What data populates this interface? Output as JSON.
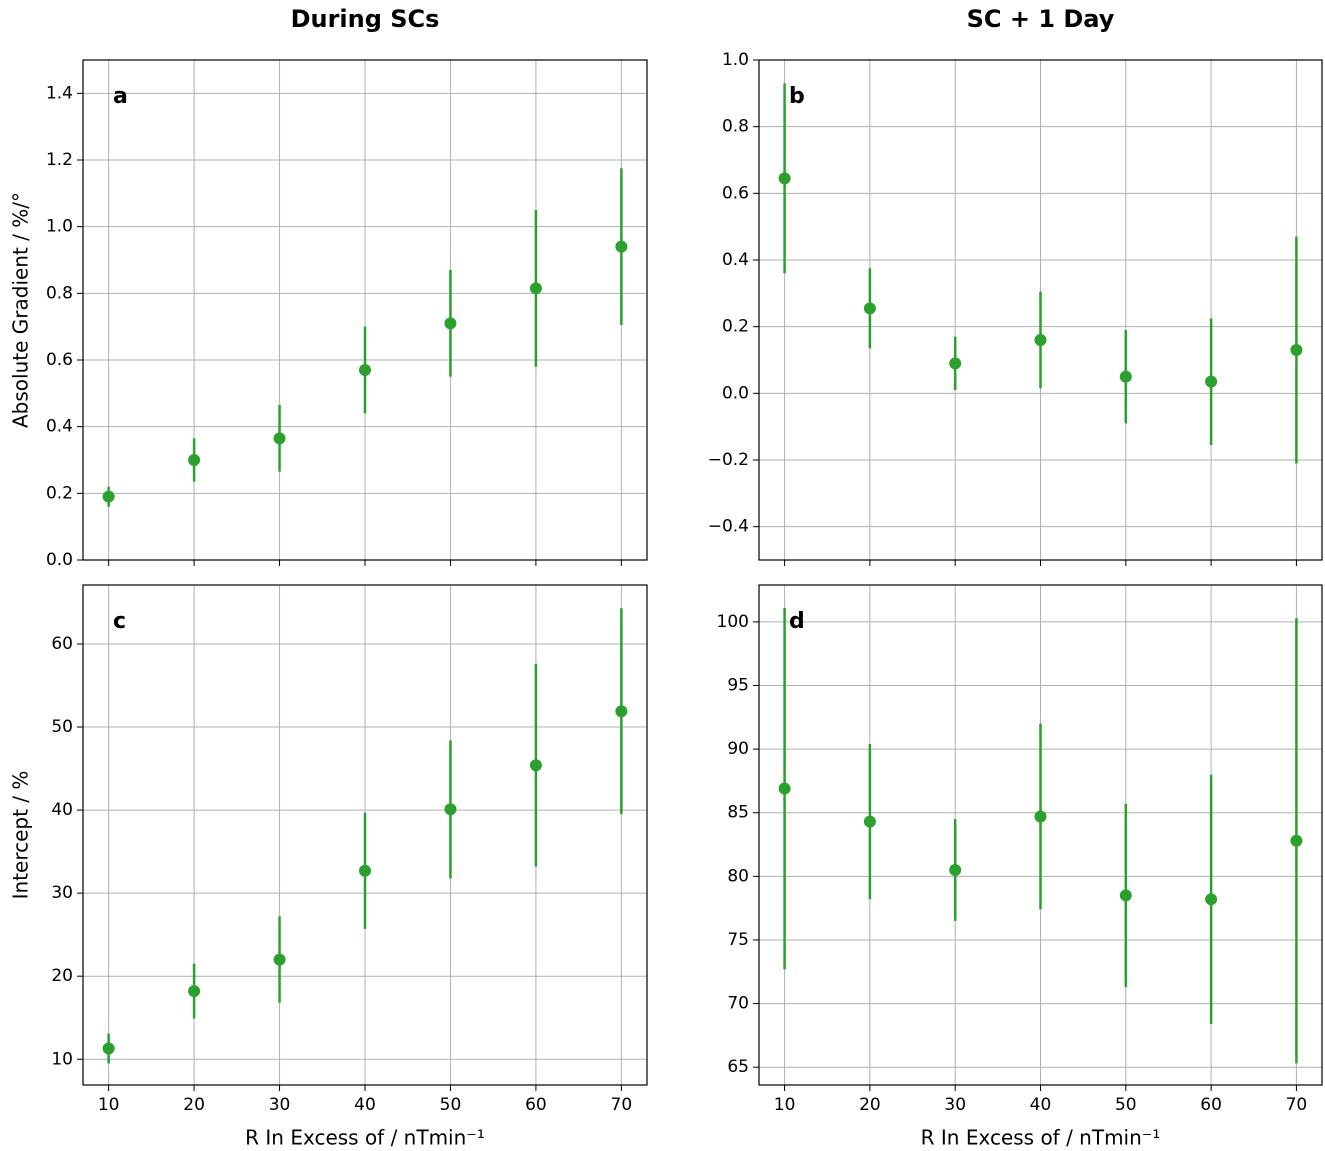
{
  "chart_data": [
    {
      "type": "errorbar",
      "title": "During SCs",
      "ylabel": "Absolute Gradient / %/°",
      "label": "a",
      "color": "#2ca02c",
      "grid": true,
      "x": [
        10,
        20,
        30,
        40,
        50,
        60,
        70
      ],
      "values": [
        0.19,
        0.3,
        0.365,
        0.57,
        0.71,
        0.815,
        0.94
      ],
      "errors": [
        0.03,
        0.065,
        0.1,
        0.13,
        0.16,
        0.235,
        0.235
      ],
      "xlim": [
        7,
        73
      ],
      "xticks": [
        10,
        20,
        30,
        40,
        50,
        60,
        70
      ],
      "ylim": [
        0,
        1.5
      ],
      "yticks": [
        {
          "value": 0,
          "label": "0.0"
        },
        {
          "value": 0.2,
          "label": "0.2"
        },
        {
          "value": 0.4,
          "label": "0.4"
        },
        {
          "value": 0.6,
          "label": "0.6"
        },
        {
          "value": 0.8,
          "label": "0.8"
        },
        {
          "value": 1.0,
          "label": "1.0"
        },
        {
          "value": 1.2,
          "label": "1.2"
        },
        {
          "value": 1.4,
          "label": "1.4"
        }
      ]
    },
    {
      "type": "errorbar",
      "title": "SC + 1 Day",
      "label": "b",
      "color": "#2ca02c",
      "grid": true,
      "x": [
        10,
        20,
        30,
        40,
        50,
        60,
        70
      ],
      "values": [
        0.645,
        0.255,
        0.09,
        0.16,
        0.05,
        0.035,
        0.13
      ],
      "errors": [
        0.285,
        0.12,
        0.08,
        0.145,
        0.14,
        0.19,
        0.34
      ],
      "xlim": [
        7,
        73
      ],
      "xticks": [
        10,
        20,
        30,
        40,
        50,
        60,
        70
      ],
      "ylim": [
        -0.5,
        1.0
      ],
      "yticks": [
        {
          "value": -0.4,
          "label": "−0.4"
        },
        {
          "value": -0.2,
          "label": "−0.2"
        },
        {
          "value": 0,
          "label": "0.0"
        },
        {
          "value": 0.2,
          "label": "0.2"
        },
        {
          "value": 0.4,
          "label": "0.4"
        },
        {
          "value": 0.6,
          "label": "0.6"
        },
        {
          "value": 0.8,
          "label": "0.8"
        },
        {
          "value": 1.0,
          "label": "1.0"
        }
      ]
    },
    {
      "type": "errorbar",
      "ylabel": "Intercept / %",
      "xlabel": "R In Excess of / nTmin⁻¹",
      "label": "c",
      "color": "#2ca02c",
      "grid": true,
      "x": [
        10,
        20,
        30,
        40,
        50,
        60,
        70
      ],
      "values": [
        11.3,
        18.2,
        22.0,
        32.7,
        40.1,
        45.4,
        51.9
      ],
      "errors": [
        1.8,
        3.3,
        5.2,
        7.0,
        8.3,
        12.2,
        12.4
      ],
      "xlim": [
        7,
        73
      ],
      "xticks": [
        10,
        20,
        30,
        40,
        50,
        60,
        70
      ],
      "ylim": [
        6.9,
        67.1
      ],
      "yticks": [
        10,
        20,
        30,
        40,
        50,
        60
      ]
    },
    {
      "type": "errorbar",
      "xlabel": "R In Excess of / nTmin⁻¹",
      "label": "d",
      "color": "#2ca02c",
      "grid": true,
      "x": [
        10,
        20,
        30,
        40,
        50,
        60,
        70
      ],
      "values": [
        86.9,
        84.3,
        80.5,
        84.7,
        78.5,
        78.2,
        82.8
      ],
      "errors": [
        14.2,
        6.1,
        4.0,
        7.3,
        7.2,
        9.8,
        17.5
      ],
      "xlim": [
        7,
        73
      ],
      "xticks": [
        10,
        20,
        30,
        40,
        50,
        60,
        70
      ],
      "ylim": [
        63.6,
        102.9
      ],
      "yticks": [
        65,
        70,
        75,
        80,
        85,
        90,
        95,
        100
      ]
    }
  ]
}
